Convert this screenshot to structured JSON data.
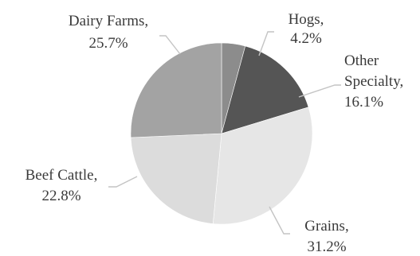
{
  "chart_data": {
    "type": "pie",
    "title": "",
    "slices": [
      {
        "label": "Hogs",
        "value": 4.2,
        "display": "4.2%",
        "color": "#8c8c8c"
      },
      {
        "label": "Other Specialty",
        "value": 16.1,
        "display": "16.1%",
        "color": "#555555"
      },
      {
        "label": "Grains",
        "value": 31.2,
        "display": "31.2%",
        "color": "#e6e6e6"
      },
      {
        "label": "Beef Cattle",
        "value": 22.8,
        "display": "22.8%",
        "color": "#dcdcdc"
      },
      {
        "label": "Dairy Farms",
        "value": 25.7,
        "display": "25.7%",
        "color": "#a3a3a3"
      }
    ],
    "start": "top, clockwise",
    "legend": "none (labels outside with leader lines)"
  }
}
